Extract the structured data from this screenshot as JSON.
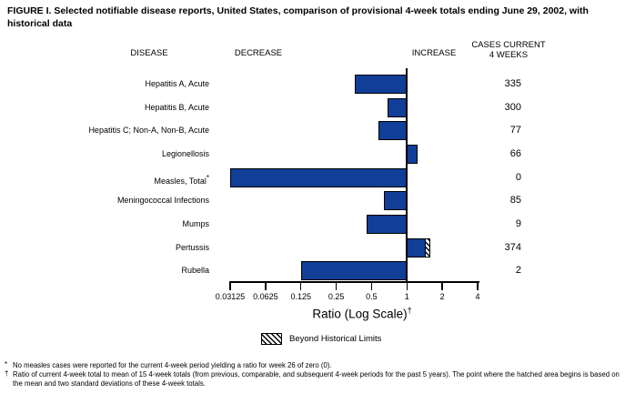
{
  "title": "FIGURE I. Selected notifiable disease reports, United States, comparison of provisional 4-week totals ending June 29, 2002, with historical data",
  "headers": {
    "disease": "DISEASE",
    "decrease": "DECREASE",
    "increase": "INCREASE",
    "cases_line1": "CASES CURRENT",
    "cases_line2": "4 WEEKS"
  },
  "chart_data": {
    "type": "bar",
    "orientation": "horizontal",
    "scale": "log2",
    "baseline": 1,
    "axis": {
      "label": "Ratio (Log Scale)",
      "label_sup": "†",
      "ticks": [
        0.03125,
        0.0625,
        0.125,
        0.25,
        0.5,
        1,
        2,
        4
      ],
      "tick_labels": [
        "0.03125",
        "0.0625",
        "0.125",
        "0.25",
        "0.5",
        "1",
        "2",
        "4"
      ]
    },
    "rows": [
      {
        "disease": "Hepatitis A, Acute",
        "sup": "",
        "ratio": 0.36,
        "cases": "335",
        "beyond_limits": false
      },
      {
        "disease": "Hepatitis B, Acute",
        "sup": "",
        "ratio": 0.68,
        "cases": "300",
        "beyond_limits": false
      },
      {
        "disease": "Hepatitis C; Non-A, Non-B, Acute",
        "sup": "",
        "ratio": 0.57,
        "cases": "77",
        "beyond_limits": false
      },
      {
        "disease": "Legionellosis",
        "sup": "",
        "ratio": 1.23,
        "cases": "66",
        "beyond_limits": false
      },
      {
        "disease": "Measles, Total",
        "sup": "*",
        "ratio": 0,
        "cases": "0",
        "beyond_limits": false,
        "full_left": true
      },
      {
        "disease": "Meningococcal Infections",
        "sup": "",
        "ratio": 0.64,
        "cases": "85",
        "beyond_limits": false
      },
      {
        "disease": "Mumps",
        "sup": "",
        "ratio": 0.45,
        "cases": "9",
        "beyond_limits": false
      },
      {
        "disease": "Pertussis",
        "sup": "",
        "ratio": 1.58,
        "cases": "374",
        "beyond_limits": true,
        "hatch_start": 1.42
      },
      {
        "disease": "Rubella",
        "sup": "",
        "ratio": 0.125,
        "cases": "2",
        "beyond_limits": false
      }
    ]
  },
  "legend": {
    "label": "Beyond Historical Limits"
  },
  "footnotes": [
    {
      "marker": "*",
      "text": "No measles cases were reported for the current 4-week period yielding a ratio for week 26 of zero (0)."
    },
    {
      "marker": "†",
      "text": "Ratio of current 4-week total to mean of 15 4-week totals (from previous, comparable, and subsequent 4-week periods for the past 5 years). The point where the hatched area begins is based on the mean and two standard deviations of these 4-week totals."
    }
  ],
  "colors": {
    "bar": "#113e97",
    "bar_outline": "#000000",
    "background": "#ffffff"
  }
}
